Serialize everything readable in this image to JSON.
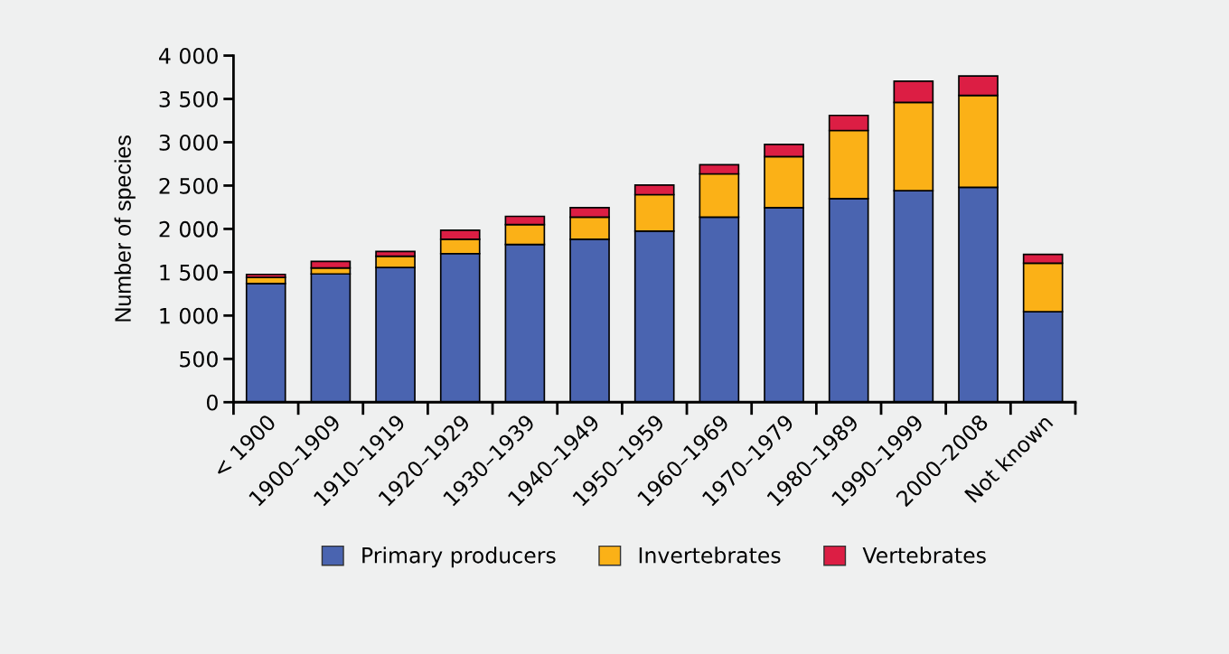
{
  "chart_data": {
    "type": "bar",
    "stacked": true,
    "ylabel": "Number of species",
    "categories": [
      "< 1900",
      "1900–1909",
      "1910–1919",
      "1920–1929",
      "1930–1939",
      "1940–1949",
      "1950–1959",
      "1960–1969",
      "1970–1979",
      "1980–1989",
      "1990–1999",
      "2000–2008",
      "Not known"
    ],
    "series": [
      {
        "name": "Primary producers",
        "color": "#4a64b0",
        "values": [
          1370,
          1480,
          1555,
          1715,
          1820,
          1880,
          1975,
          2135,
          2245,
          2350,
          2440,
          2480,
          1045
        ]
      },
      {
        "name": "Invertebrates",
        "color": "#fbb117",
        "values": [
          70,
          70,
          130,
          165,
          230,
          255,
          420,
          500,
          590,
          785,
          1020,
          1060,
          560
        ]
      },
      {
        "name": "Vertebrates",
        "color": "#dc1e44",
        "values": [
          35,
          75,
          55,
          105,
          95,
          110,
          110,
          105,
          140,
          175,
          245,
          225,
          100
        ]
      }
    ],
    "ylim": [
      0,
      4000
    ],
    "yticks": [
      {
        "value": 0,
        "label": "0"
      },
      {
        "value": 500,
        "label": "500"
      },
      {
        "value": 1000,
        "label": "1 000"
      },
      {
        "value": 1500,
        "label": "1 500"
      },
      {
        "value": 2000,
        "label": "2 000"
      },
      {
        "value": 2500,
        "label": "2 500"
      },
      {
        "value": 3000,
        "label": "3 000"
      },
      {
        "value": 3500,
        "label": "3 500"
      },
      {
        "value": 4000,
        "label": "4 000"
      }
    ],
    "grid": false,
    "legend": "bottom"
  }
}
